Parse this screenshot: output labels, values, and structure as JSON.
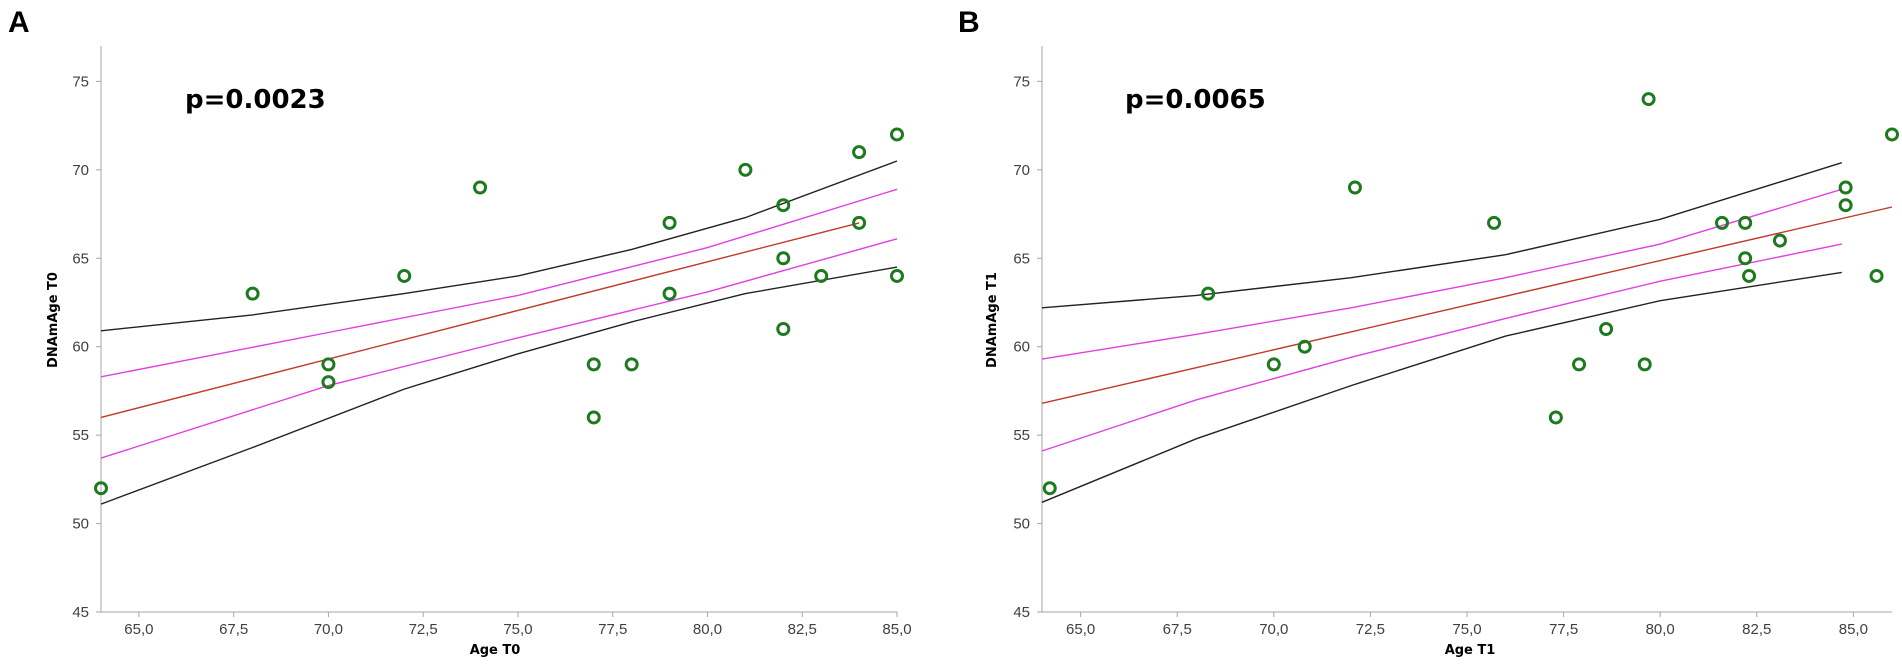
{
  "chart_data": [
    {
      "type": "scatter",
      "panel_label": "A",
      "annotation": "p=0.0023",
      "xlabel": "Age T0",
      "ylabel": "DNAmAge T0",
      "xlim": [
        64,
        85
      ],
      "ylim": [
        45,
        77
      ],
      "xticks": [
        "65,0",
        "67,5",
        "70,0",
        "72,5",
        "75,0",
        "77,5",
        "80,0",
        "82,5",
        "85,0"
      ],
      "xtick_values": [
        65,
        67.5,
        70,
        72.5,
        75,
        77.5,
        80,
        82.5,
        85
      ],
      "yticks": [
        "45",
        "50",
        "55",
        "60",
        "65",
        "70",
        "75"
      ],
      "ytick_values": [
        45,
        50,
        55,
        60,
        65,
        70,
        75
      ],
      "points": [
        {
          "x": 64,
          "y": 52
        },
        {
          "x": 68,
          "y": 63
        },
        {
          "x": 70,
          "y": 59
        },
        {
          "x": 70,
          "y": 58
        },
        {
          "x": 72,
          "y": 64
        },
        {
          "x": 74,
          "y": 69
        },
        {
          "x": 77,
          "y": 59
        },
        {
          "x": 77,
          "y": 56
        },
        {
          "x": 78,
          "y": 59
        },
        {
          "x": 79,
          "y": 67
        },
        {
          "x": 79,
          "y": 63
        },
        {
          "x": 81,
          "y": 70
        },
        {
          "x": 82,
          "y": 68
        },
        {
          "x": 82,
          "y": 65
        },
        {
          "x": 82,
          "y": 61
        },
        {
          "x": 83,
          "y": 64
        },
        {
          "x": 84,
          "y": 71
        },
        {
          "x": 84,
          "y": 67
        },
        {
          "x": 85,
          "y": 72
        },
        {
          "x": 85,
          "y": 64
        }
      ],
      "series": [
        {
          "name": "regression",
          "color": "#c0392b",
          "x": [
            64,
            84
          ],
          "y": [
            56.0,
            67.0
          ]
        },
        {
          "name": "ci-upper",
          "color": "#e040e0",
          "x": [
            64,
            70,
            75,
            80,
            85
          ],
          "y": [
            58.3,
            60.8,
            62.9,
            65.6,
            68.9
          ]
        },
        {
          "name": "ci-lower",
          "color": "#e040e0",
          "x": [
            64,
            70,
            75,
            80,
            85
          ],
          "y": [
            53.7,
            57.8,
            60.5,
            63.1,
            66.1
          ]
        },
        {
          "name": "pi-upper",
          "color": "#222222",
          "x": [
            64,
            68,
            72,
            75,
            78,
            81,
            85
          ],
          "y": [
            60.9,
            61.8,
            63.0,
            64.0,
            65.5,
            67.3,
            70.5
          ]
        },
        {
          "name": "pi-lower",
          "color": "#222222",
          "x": [
            64,
            68,
            72,
            75,
            78,
            81,
            85
          ],
          "y": [
            51.1,
            54.3,
            57.6,
            59.6,
            61.4,
            63.0,
            64.5
          ]
        }
      ],
      "point_color": "#1e7a1e"
    },
    {
      "type": "scatter",
      "panel_label": "B",
      "annotation": "p=0.0065",
      "xlabel": "Age T1",
      "ylabel": "DNAmAge T1",
      "xlim": [
        64,
        86
      ],
      "ylim": [
        45,
        77
      ],
      "xticks": [
        "65,0",
        "67,5",
        "70,0",
        "72,5",
        "75,0",
        "77,5",
        "80,0",
        "82,5",
        "85,0"
      ],
      "xtick_values": [
        65,
        67.5,
        70,
        72.5,
        75,
        77.5,
        80,
        82.5,
        85
      ],
      "yticks": [
        "45",
        "50",
        "55",
        "60",
        "65",
        "70",
        "75"
      ],
      "ytick_values": [
        45,
        50,
        55,
        60,
        65,
        70,
        75
      ],
      "points": [
        {
          "x": 64.2,
          "y": 52
        },
        {
          "x": 68.3,
          "y": 63
        },
        {
          "x": 70.0,
          "y": 59
        },
        {
          "x": 70.8,
          "y": 60
        },
        {
          "x": 72.1,
          "y": 69
        },
        {
          "x": 75.7,
          "y": 67
        },
        {
          "x": 77.3,
          "y": 56
        },
        {
          "x": 77.9,
          "y": 59
        },
        {
          "x": 78.6,
          "y": 61
        },
        {
          "x": 79.6,
          "y": 59
        },
        {
          "x": 79.7,
          "y": 74
        },
        {
          "x": 81.6,
          "y": 67
        },
        {
          "x": 82.2,
          "y": 67
        },
        {
          "x": 82.2,
          "y": 65
        },
        {
          "x": 82.3,
          "y": 64
        },
        {
          "x": 83.1,
          "y": 66
        },
        {
          "x": 84.8,
          "y": 69
        },
        {
          "x": 84.8,
          "y": 68
        },
        {
          "x": 85.6,
          "y": 64
        },
        {
          "x": 86.0,
          "y": 72
        }
      ],
      "series": [
        {
          "name": "regression",
          "color": "#c0392b",
          "x": [
            64,
            86
          ],
          "y": [
            56.8,
            67.9
          ]
        },
        {
          "name": "ci-upper",
          "color": "#e040e0",
          "x": [
            64,
            68,
            72,
            76,
            80,
            84.7
          ],
          "y": [
            59.3,
            60.7,
            62.2,
            63.9,
            65.8,
            68.9
          ]
        },
        {
          "name": "ci-lower",
          "color": "#e040e0",
          "x": [
            64,
            68,
            72,
            76,
            80,
            84.7
          ],
          "y": [
            54.1,
            57.0,
            59.4,
            61.6,
            63.7,
            65.8
          ]
        },
        {
          "name": "pi-upper",
          "color": "#222222",
          "x": [
            64,
            68,
            72,
            76,
            80,
            84.7
          ],
          "y": [
            62.2,
            62.9,
            63.9,
            65.2,
            67.2,
            70.4
          ]
        },
        {
          "name": "pi-lower",
          "color": "#222222",
          "x": [
            64,
            68,
            72,
            76,
            80,
            84.7
          ],
          "y": [
            51.2,
            54.8,
            57.8,
            60.6,
            62.6,
            64.2
          ]
        }
      ],
      "point_color": "#1e7a1e"
    }
  ]
}
